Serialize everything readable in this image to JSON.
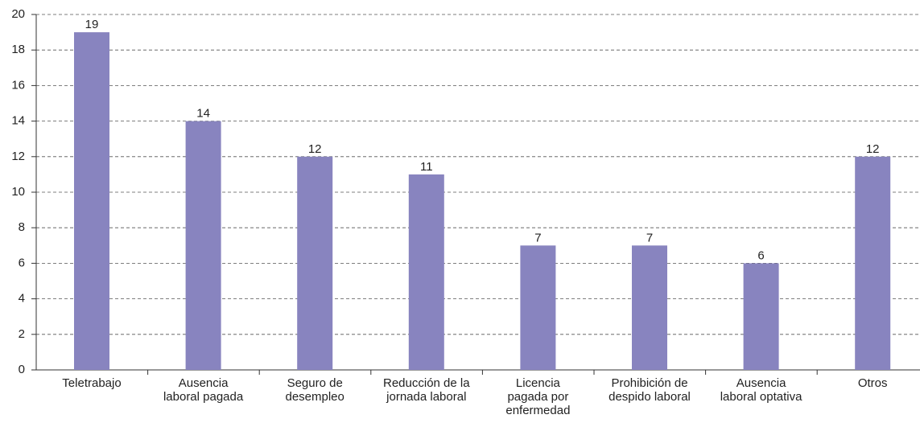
{
  "chart_data": {
    "type": "bar",
    "categories": [
      "Teletrabajo",
      "Ausencia\nlaboral pagada",
      "Seguro de\ndesempleo",
      "Reducción de la\njornada laboral",
      "Licencia\npagada por\nenfermedad",
      "Prohibición de\ndespido laboral",
      "Ausencia\nlaboral optativa",
      "Otros"
    ],
    "values": [
      19,
      14,
      12,
      11,
      7,
      7,
      6,
      12
    ],
    "color": "#8884bf",
    "ylim": [
      0,
      20
    ],
    "yticks": [
      0,
      2,
      4,
      6,
      8,
      10,
      12,
      14,
      16,
      18,
      20
    ],
    "grid": true
  }
}
